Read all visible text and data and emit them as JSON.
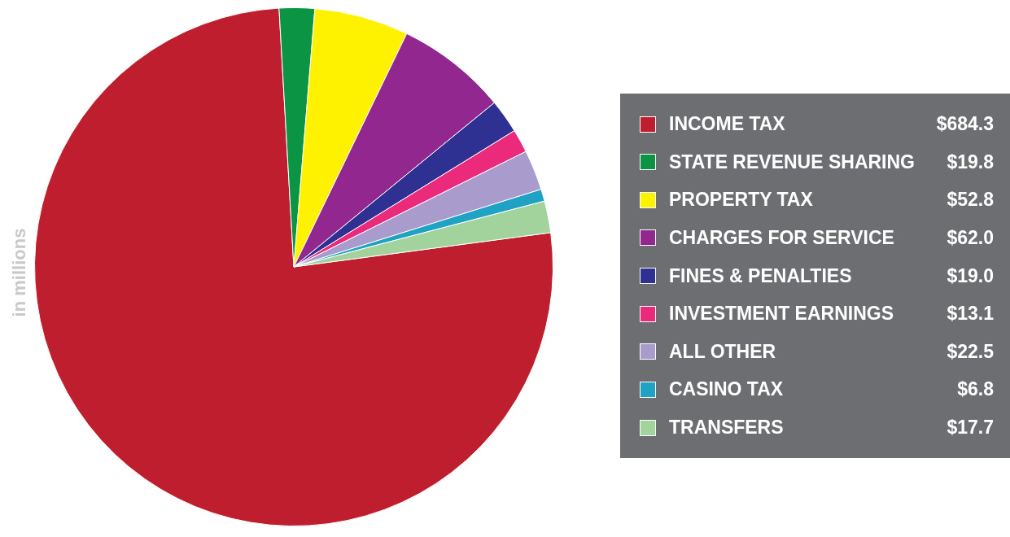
{
  "chart_data": {
    "type": "pie",
    "categories": [
      "INCOME TAX",
      "STATE REVENUE SHARING",
      "PROPERTY TAX",
      "CHARGES FOR SERVICE",
      "FINES & PENALTIES",
      "INVESTMENT EARNINGS",
      "ALL OTHER",
      "CASINO TAX",
      "TRANSFERS"
    ],
    "values": [
      684.3,
      19.8,
      52.8,
      62.0,
      19.0,
      13.1,
      22.5,
      6.8,
      17.7
    ],
    "value_labels": [
      "$684.3",
      "$19.8",
      "$52.8",
      "$62.0",
      "$19.0",
      "$13.1",
      "$22.5",
      "$6.8",
      "$17.7"
    ],
    "colors": [
      "#be1e2d",
      "#0b9444",
      "#fff200",
      "#92278f",
      "#2e3192",
      "#ec2a7b",
      "#a99bcc",
      "#1fa2c4",
      "#a2d39c"
    ],
    "legend": "right",
    "annotations": [
      "in millions"
    ]
  }
}
